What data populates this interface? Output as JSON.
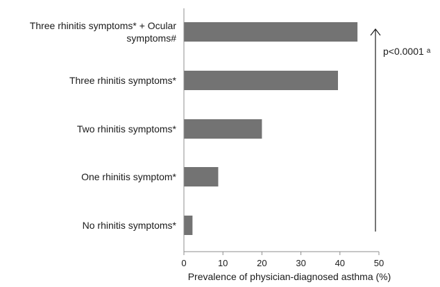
{
  "chart_data": {
    "type": "bar",
    "orientation": "horizontal",
    "title": "",
    "xlabel": "Prevalence of physician-diagnosed asthma (%)",
    "ylabel": "",
    "xlim": [
      0,
      50
    ],
    "xticks": [
      "0",
      "10",
      "20",
      "30",
      "40",
      "50"
    ],
    "grid": false,
    "categories": [
      [
        "Three rhinitis symptoms* + Ocular",
        "symptoms#"
      ],
      [
        "Three rhinitis symptoms*"
      ],
      [
        "Two rhinitis symptoms*"
      ],
      [
        "One rhinitis symptom*"
      ],
      [
        "No rhinitis symptoms*"
      ]
    ],
    "values": [
      44.5,
      39.5,
      20.0,
      8.8,
      2.2
    ],
    "bar_color": "#737373",
    "annotation": {
      "text": "p<0.0001",
      "superscript": "a",
      "arrow": "up"
    }
  }
}
